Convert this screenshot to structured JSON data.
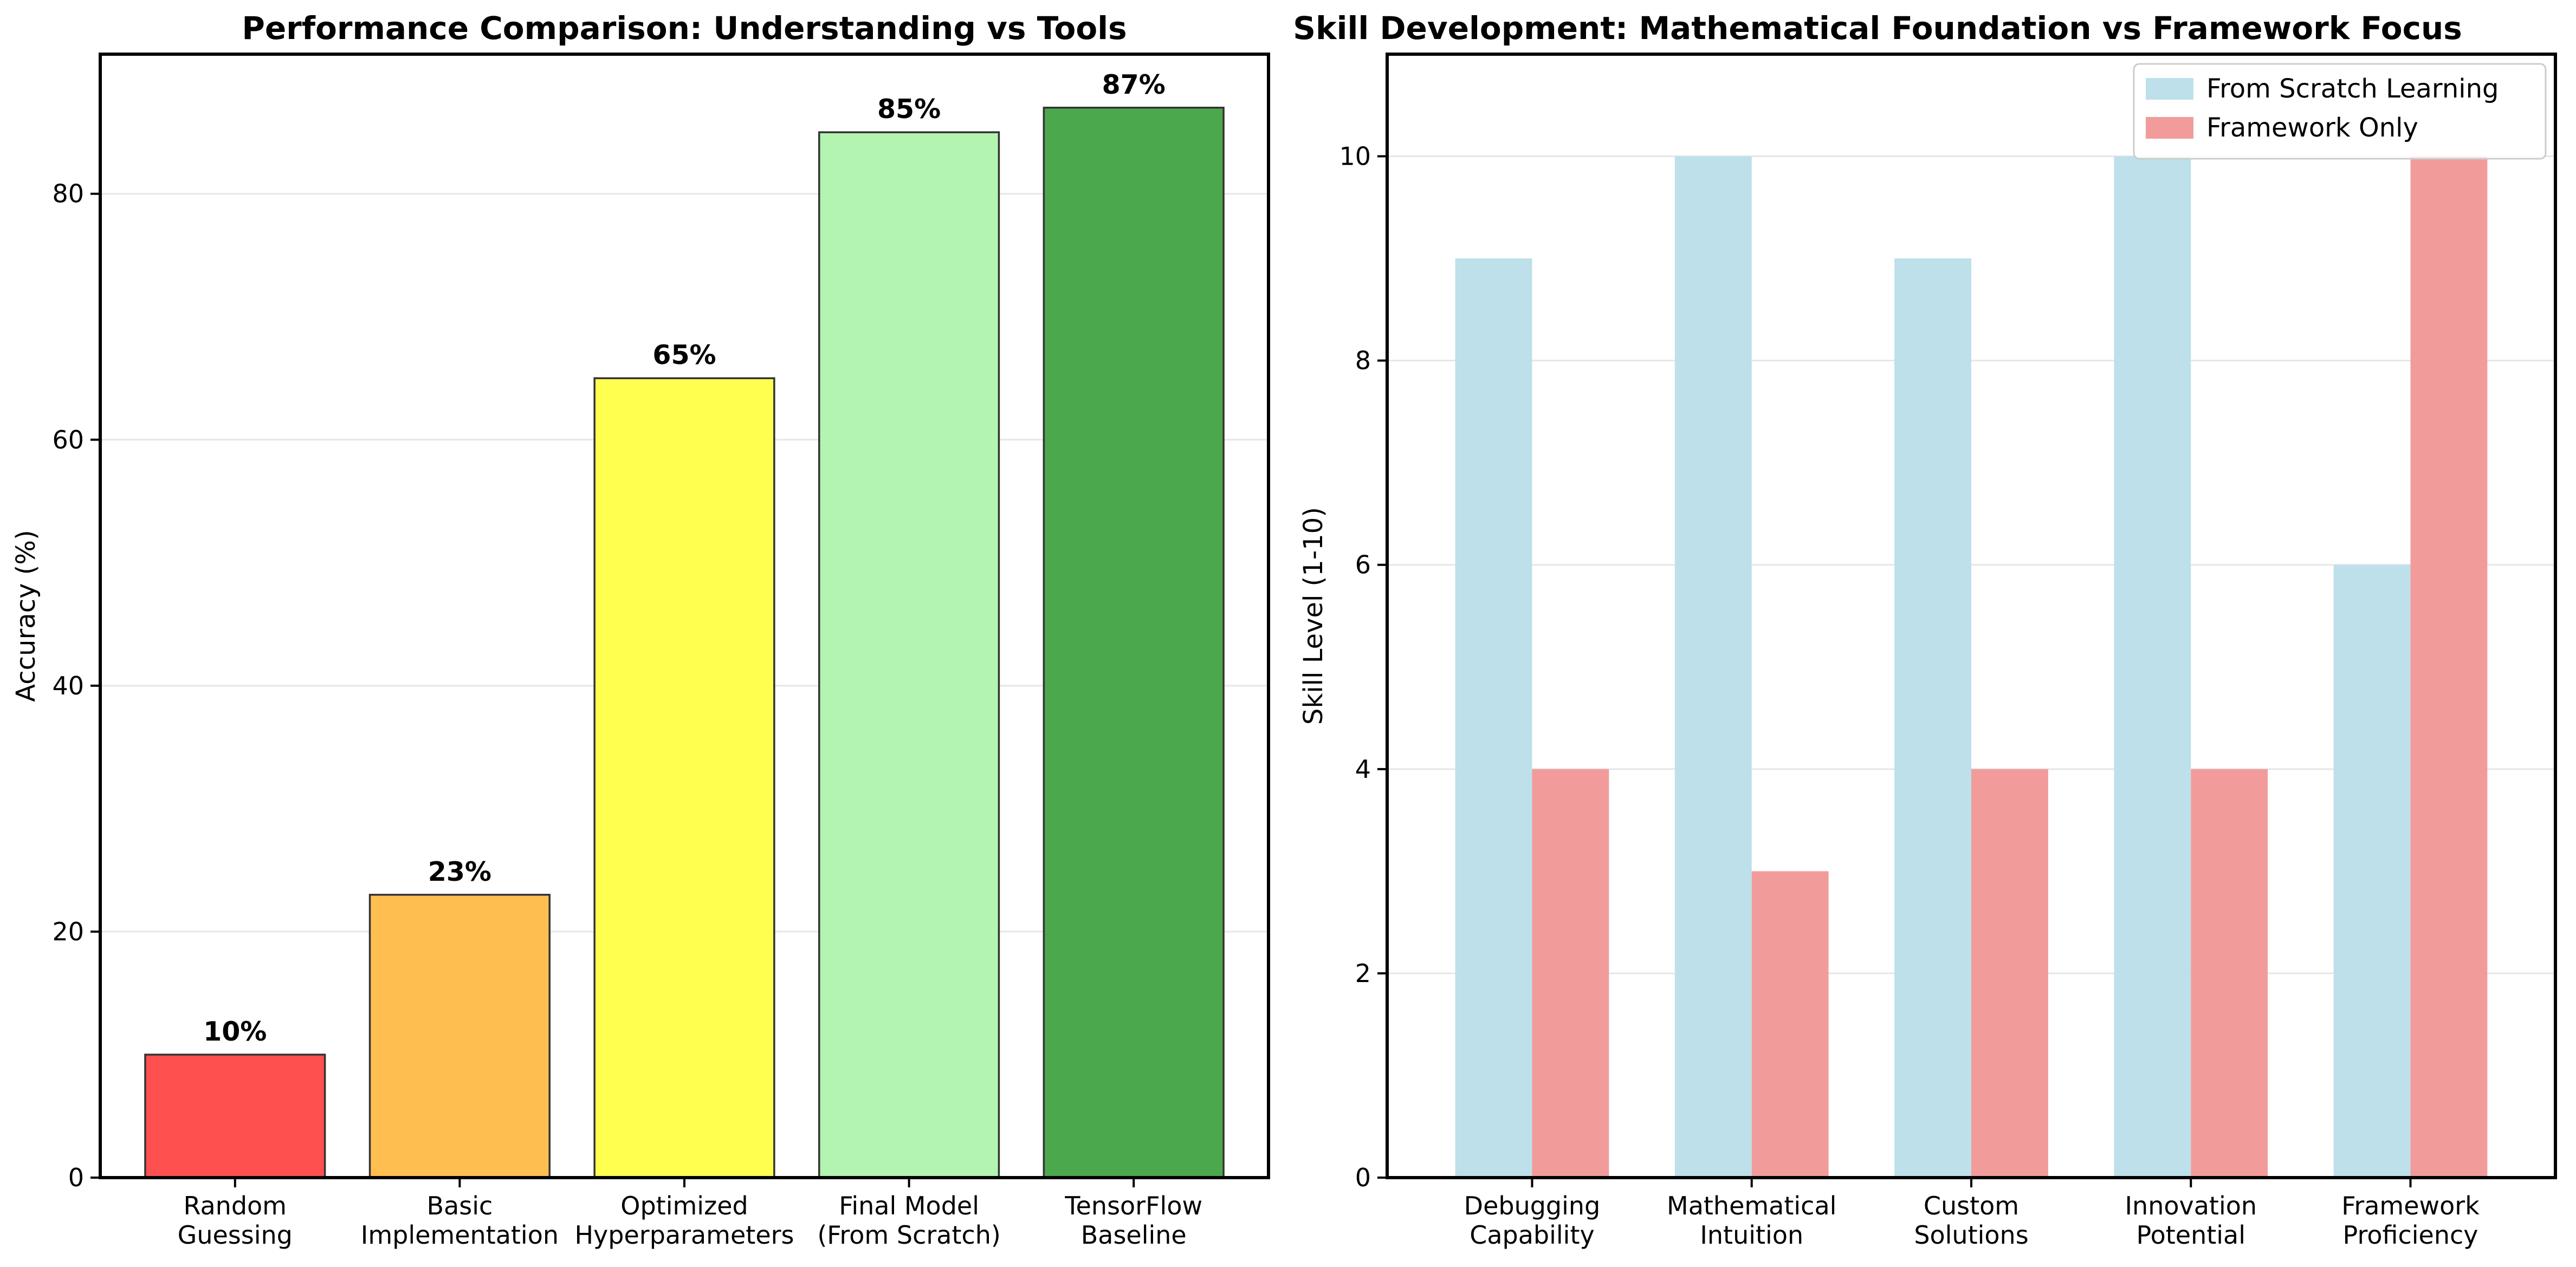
{
  "chart_data": [
    {
      "type": "bar",
      "title": "Performance Comparison: Understanding vs Tools",
      "xlabel": "",
      "ylabel": "Accuracy (%)",
      "ylim": [
        0,
        91.35
      ],
      "yticks": [
        "0",
        "20",
        "40",
        "60",
        "80"
      ],
      "grid": "y",
      "categories": [
        [
          "Random",
          "Guessing"
        ],
        [
          "Basic",
          "Implementation"
        ],
        [
          "Optimized",
          "Hyperparameters"
        ],
        [
          "Final Model",
          "(From Scratch)"
        ],
        [
          "TensorFlow",
          "Baseline"
        ]
      ],
      "values": [
        10,
        23,
        65,
        85,
        87
      ],
      "data_labels": [
        "10%",
        "23%",
        "65%",
        "85%",
        "87%"
      ],
      "colors": [
        "#ff5050",
        "#ffbf50",
        "#ffff50",
        "#b2f4b0",
        "#4ca84c"
      ]
    },
    {
      "type": "bar",
      "title": "Skill Development: Mathematical Foundation vs Framework Focus",
      "xlabel": "",
      "ylabel": "Skill Level (1-10)",
      "ylim": [
        0,
        11
      ],
      "yticks": [
        "0",
        "2",
        "4",
        "6",
        "8",
        "10"
      ],
      "grid": "y",
      "legend_position": "top-right",
      "categories": [
        [
          "Debugging",
          "Capability"
        ],
        [
          "Mathematical",
          "Intuition"
        ],
        [
          "Custom",
          "Solutions"
        ],
        [
          "Innovation",
          "Potential"
        ],
        [
          "Framework",
          "Proficiency"
        ]
      ],
      "series": [
        {
          "name": "From Scratch Learning",
          "values": [
            9,
            10,
            9,
            10,
            6
          ],
          "color": "#bde0ea"
        },
        {
          "name": "Framework Only",
          "values": [
            4,
            3,
            4,
            4,
            10
          ],
          "color": "#f29b9b"
        }
      ]
    }
  ]
}
